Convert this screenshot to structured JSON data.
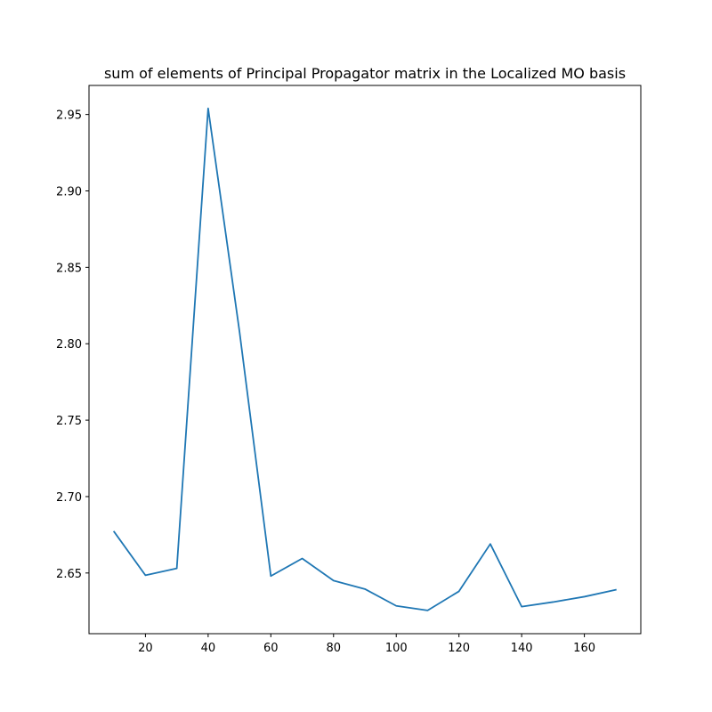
{
  "chart_data": {
    "type": "line",
    "title": "sum of elements of Principal Propagator matrix in the Localized MO basis",
    "xlabel": "",
    "ylabel": "",
    "xlim": [
      2,
      178
    ],
    "ylim": [
      2.6103,
      2.969
    ],
    "xticks": [
      20,
      40,
      60,
      80,
      100,
      120,
      140,
      160
    ],
    "yticks": [
      2.65,
      2.7,
      2.75,
      2.8,
      2.85,
      2.9,
      2.95
    ],
    "ytick_labels": [
      "2.65",
      "2.70",
      "2.75",
      "2.80",
      "2.85",
      "2.90",
      "2.95"
    ],
    "grid": false,
    "series": [
      {
        "color": "#1f77b4",
        "x": [
          10,
          20,
          30,
          40,
          50,
          60,
          70,
          80,
          90,
          100,
          110,
          120,
          130,
          140,
          150,
          160,
          170
        ],
        "y": [
          2.677,
          2.6485,
          2.653,
          2.954,
          2.808,
          2.648,
          2.6595,
          2.645,
          2.6395,
          2.6285,
          2.6255,
          2.638,
          2.669,
          2.628,
          2.631,
          2.6345,
          2.639
        ]
      }
    ]
  }
}
